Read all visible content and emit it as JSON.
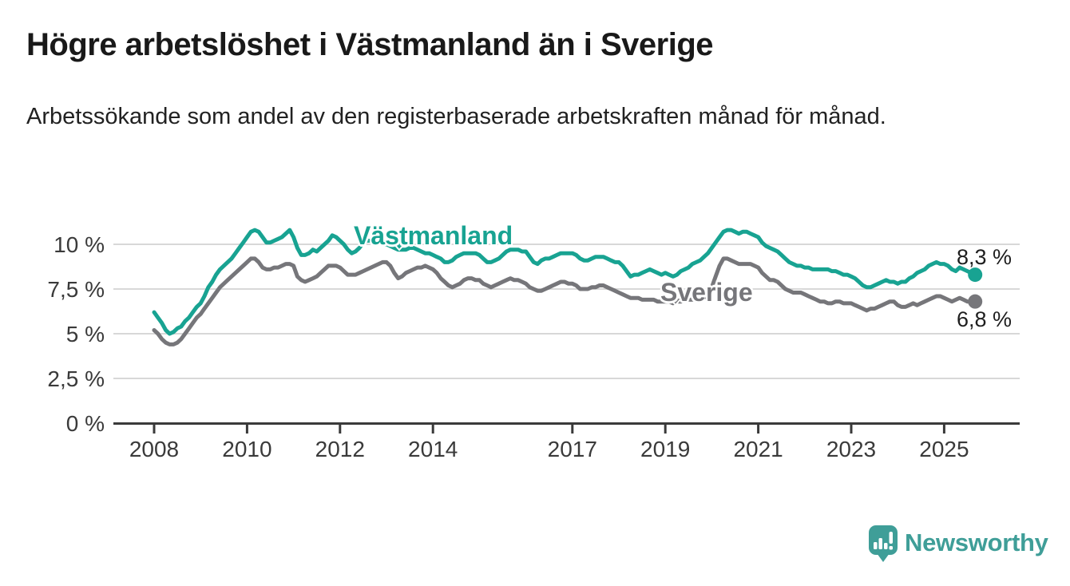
{
  "header": {
    "title": "Högre arbetslöshet i Västmanland än i Sverige",
    "subtitle": "Arbetssökande som andel av den registerbaserade arbetskraften månad för månad."
  },
  "chart_data": {
    "type": "line",
    "unit": "%",
    "frequency": "monthly",
    "start": {
      "year": 2008,
      "month": 1
    },
    "end": {
      "year": 2025,
      "month": 9
    },
    "x_ticks": [
      2008,
      2010,
      2012,
      2014,
      2017,
      2019,
      2021,
      2023,
      2025
    ],
    "y_tick_values": [
      0,
      2.5,
      5,
      7.5,
      10
    ],
    "y_tick_labels": [
      "0 %",
      "2,5 %",
      "5 %",
      "7,5 %",
      "10 %"
    ],
    "ylim": [
      0,
      11.5
    ],
    "grid": true,
    "legend_position": "inline-labels",
    "series": [
      {
        "name": "Västmanland",
        "color": "#18a392",
        "end_label": "8,3 %",
        "last_value": 8.3,
        "values": [
          6.2,
          5.9,
          5.6,
          5.2,
          5.0,
          5.1,
          5.3,
          5.4,
          5.7,
          5.9,
          6.2,
          6.5,
          6.7,
          7.1,
          7.6,
          7.9,
          8.3,
          8.6,
          8.8,
          9.0,
          9.2,
          9.5,
          9.8,
          10.1,
          10.4,
          10.7,
          10.8,
          10.7,
          10.4,
          10.1,
          10.1,
          10.2,
          10.3,
          10.4,
          10.6,
          10.8,
          10.4,
          9.8,
          9.4,
          9.4,
          9.5,
          9.7,
          9.6,
          9.8,
          10.0,
          10.2,
          10.5,
          10.4,
          10.2,
          10.0,
          9.7,
          9.5,
          9.6,
          9.8,
          10.1,
          10.2,
          10.2,
          10.1,
          10.1,
          10.0,
          10.0,
          9.9,
          9.8,
          9.7,
          9.7,
          9.7,
          9.8,
          9.8,
          9.7,
          9.6,
          9.5,
          9.5,
          9.4,
          9.3,
          9.2,
          9.0,
          9.0,
          9.1,
          9.3,
          9.4,
          9.5,
          9.5,
          9.5,
          9.5,
          9.4,
          9.2,
          9.0,
          9.0,
          9.1,
          9.2,
          9.4,
          9.6,
          9.7,
          9.7,
          9.7,
          9.6,
          9.6,
          9.3,
          9.0,
          8.9,
          9.1,
          9.2,
          9.2,
          9.3,
          9.4,
          9.5,
          9.5,
          9.5,
          9.5,
          9.4,
          9.2,
          9.1,
          9.1,
          9.2,
          9.3,
          9.3,
          9.3,
          9.2,
          9.1,
          9.0,
          9.0,
          8.8,
          8.5,
          8.2,
          8.3,
          8.3,
          8.4,
          8.5,
          8.6,
          8.5,
          8.4,
          8.3,
          8.4,
          8.3,
          8.2,
          8.3,
          8.5,
          8.6,
          8.7,
          8.9,
          9.0,
          9.1,
          9.3,
          9.5,
          9.8,
          10.1,
          10.4,
          10.7,
          10.8,
          10.8,
          10.7,
          10.6,
          10.7,
          10.7,
          10.6,
          10.5,
          10.4,
          10.1,
          9.9,
          9.8,
          9.7,
          9.6,
          9.4,
          9.2,
          9.0,
          8.9,
          8.8,
          8.8,
          8.7,
          8.7,
          8.6,
          8.6,
          8.6,
          8.6,
          8.6,
          8.5,
          8.5,
          8.4,
          8.3,
          8.3,
          8.2,
          8.1,
          7.9,
          7.7,
          7.6,
          7.6,
          7.7,
          7.8,
          7.9,
          8.0,
          7.9,
          7.9,
          7.8,
          7.9,
          7.9,
          8.1,
          8.2,
          8.4,
          8.5,
          8.6,
          8.8,
          8.9,
          9.0,
          8.9,
          8.9,
          8.8,
          8.6,
          8.5,
          8.7,
          8.6,
          8.5,
          8.4,
          8.3
        ]
      },
      {
        "name": "Sverige",
        "color": "#76767a",
        "end_label": "6,8 %",
        "last_value": 6.8,
        "values": [
          5.2,
          5.0,
          4.7,
          4.5,
          4.4,
          4.4,
          4.5,
          4.7,
          5.0,
          5.3,
          5.6,
          5.9,
          6.1,
          6.4,
          6.7,
          7.0,
          7.3,
          7.6,
          7.8,
          8.0,
          8.2,
          8.4,
          8.6,
          8.8,
          9.0,
          9.2,
          9.2,
          9.0,
          8.7,
          8.6,
          8.6,
          8.7,
          8.7,
          8.8,
          8.9,
          8.9,
          8.8,
          8.2,
          8.0,
          7.9,
          8.0,
          8.1,
          8.2,
          8.4,
          8.6,
          8.8,
          8.8,
          8.8,
          8.7,
          8.5,
          8.3,
          8.3,
          8.3,
          8.4,
          8.5,
          8.6,
          8.7,
          8.8,
          8.9,
          9.0,
          9.0,
          8.8,
          8.4,
          8.1,
          8.2,
          8.4,
          8.5,
          8.6,
          8.7,
          8.7,
          8.8,
          8.7,
          8.6,
          8.4,
          8.1,
          7.9,
          7.7,
          7.6,
          7.7,
          7.8,
          8.0,
          8.1,
          8.1,
          8.0,
          8.0,
          7.8,
          7.7,
          7.6,
          7.7,
          7.8,
          7.9,
          8.0,
          8.1,
          8.0,
          8.0,
          7.9,
          7.8,
          7.6,
          7.5,
          7.4,
          7.4,
          7.5,
          7.6,
          7.7,
          7.8,
          7.9,
          7.9,
          7.8,
          7.8,
          7.7,
          7.5,
          7.5,
          7.5,
          7.6,
          7.6,
          7.7,
          7.7,
          7.6,
          7.5,
          7.4,
          7.3,
          7.2,
          7.1,
          7.0,
          7.0,
          7.0,
          6.9,
          6.9,
          6.9,
          6.9,
          6.8,
          6.8,
          6.8,
          6.8,
          6.7,
          6.8,
          6.8,
          6.9,
          6.9,
          6.9,
          6.9,
          7.0,
          7.0,
          7.2,
          7.6,
          8.2,
          8.8,
          9.2,
          9.2,
          9.1,
          9.0,
          8.9,
          8.9,
          8.9,
          8.9,
          8.8,
          8.7,
          8.4,
          8.2,
          8.0,
          8.0,
          7.9,
          7.7,
          7.5,
          7.4,
          7.3,
          7.3,
          7.3,
          7.2,
          7.1,
          7.0,
          6.9,
          6.8,
          6.8,
          6.7,
          6.7,
          6.8,
          6.8,
          6.7,
          6.7,
          6.7,
          6.6,
          6.5,
          6.4,
          6.3,
          6.4,
          6.4,
          6.5,
          6.6,
          6.7,
          6.8,
          6.8,
          6.6,
          6.5,
          6.5,
          6.6,
          6.7,
          6.6,
          6.7,
          6.8,
          6.9,
          7.0,
          7.1,
          7.1,
          7.0,
          6.9,
          6.8,
          6.9,
          7.0,
          6.9,
          6.8,
          6.8,
          6.8
        ]
      }
    ],
    "colors": {
      "grid": "#d8d8d8",
      "axis": "#3a3a3a",
      "tick_text": "#3a3a3a"
    }
  },
  "branding": {
    "name": "Newsworthy",
    "color": "#3f9e98",
    "icon": "speech-bubble-bar-chart-icon"
  }
}
